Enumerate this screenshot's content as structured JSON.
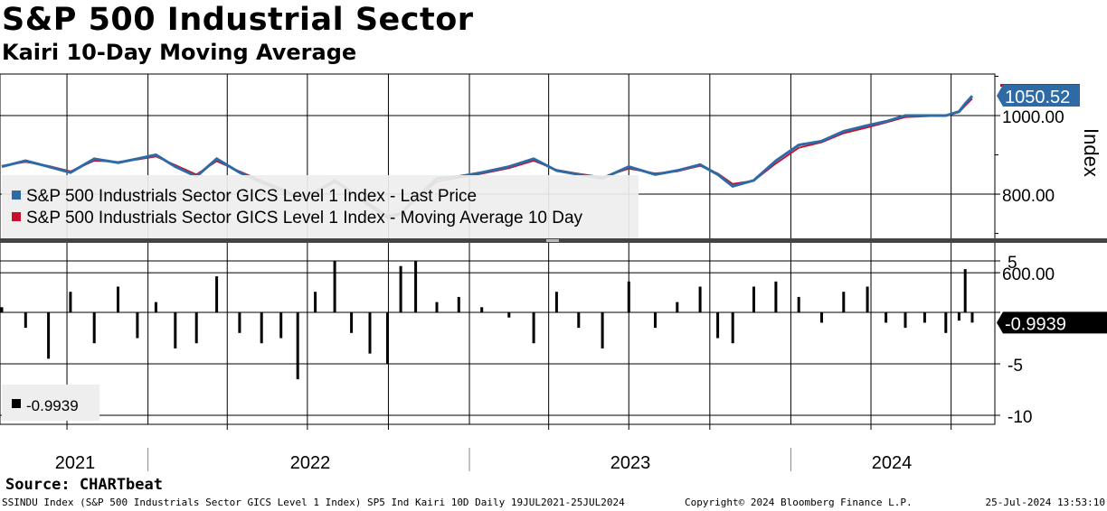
{
  "title": "S&P 500 Industrial Sector",
  "subtitle": "Kairi 10-Day Moving Average",
  "source": "Source: CHARTbeat",
  "footer": {
    "left": "SSINDU Index (S&P 500 Industrials Sector GICS Level 1 Index) SP5 Ind Kairi 10D  Daily 19JUL2021-25JUL2024",
    "center": "Copyright© 2024 Bloomberg Finance L.P.",
    "right": "25-Jul-2024 13:53:10"
  },
  "colors": {
    "price": "#2e6aa6",
    "ma": "#c8102e",
    "kairi": "#000000",
    "last_tag": "#2e6aa6",
    "kairi_tag": "#000000"
  },
  "chart_data": [
    {
      "type": "line",
      "ylabel": "Index",
      "ylim": [
        580,
        1110
      ],
      "yticks": [
        600,
        800,
        1000
      ],
      "ytick_labels": [
        "600.00",
        "800.00",
        "1000.00"
      ],
      "last_value_label": "1050.52",
      "legend": [
        "S&P 500 Industrials Sector GICS Level 1 Index - Last Price",
        "S&P 500 Industrials Sector GICS Level 1 Index - Moving Average 10 Day"
      ],
      "legend_position": "bottom-left",
      "x": [
        "2021-07-19",
        "2021-08-15",
        "2021-09-10",
        "2021-10-05",
        "2021-11-01",
        "2021-11-28",
        "2021-12-20",
        "2022-01-10",
        "2022-02-01",
        "2022-02-25",
        "2022-03-20",
        "2022-04-15",
        "2022-05-10",
        "2022-06-01",
        "2022-06-20",
        "2022-07-10",
        "2022-08-01",
        "2022-08-20",
        "2022-09-10",
        "2022-09-30",
        "2022-10-15",
        "2022-11-01",
        "2022-11-25",
        "2022-12-20",
        "2023-01-15",
        "2023-02-15",
        "2023-03-15",
        "2023-04-10",
        "2023-05-05",
        "2023-06-01",
        "2023-07-01",
        "2023-07-31",
        "2023-08-25",
        "2023-09-20",
        "2023-10-10",
        "2023-10-27",
        "2023-11-20",
        "2023-12-15",
        "2024-01-10",
        "2024-02-05",
        "2024-03-01",
        "2024-03-28",
        "2024-04-18",
        "2024-05-10",
        "2024-06-01",
        "2024-06-25",
        "2024-07-10",
        "2024-07-17",
        "2024-07-25"
      ],
      "series": [
        {
          "name": "S&P 500 Industrials Sector GICS Level 1 Index - Last Price",
          "values": [
            870,
            885,
            870,
            855,
            890,
            880,
            890,
            900,
            870,
            845,
            890,
            855,
            830,
            810,
            790,
            805,
            835,
            805,
            770,
            740,
            750,
            790,
            840,
            845,
            855,
            870,
            890,
            860,
            850,
            840,
            870,
            850,
            860,
            875,
            850,
            820,
            835,
            885,
            925,
            935,
            960,
            975,
            985,
            1000,
            1000,
            1000,
            1010,
            1030,
            1050
          ]
        },
        {
          "name": "S&P 500 Industrials Sector GICS Level 1 Index - Moving Average 10 Day",
          "values": [
            872,
            882,
            872,
            858,
            885,
            882,
            888,
            896,
            874,
            850,
            884,
            858,
            834,
            814,
            795,
            804,
            830,
            808,
            775,
            745,
            752,
            785,
            832,
            842,
            852,
            866,
            885,
            862,
            852,
            843,
            865,
            853,
            858,
            872,
            853,
            826,
            834,
            878,
            918,
            932,
            955,
            970,
            982,
            996,
            998,
            1000,
            1008,
            1025,
            1043
          ]
        }
      ]
    },
    {
      "type": "bar",
      "ylim": [
        -11,
        6
      ],
      "yticks": [
        5,
        0,
        -5,
        -10
      ],
      "ytick_labels": [
        "5",
        "0",
        "-5",
        "-10"
      ],
      "last_value_label": "-0.9939",
      "legend": [
        "-0.9939"
      ],
      "legend_position": "bottom-left",
      "x": [
        "2021-07-19",
        "2021-08-15",
        "2021-09-10",
        "2021-10-05",
        "2021-11-01",
        "2021-11-28",
        "2021-12-20",
        "2022-01-10",
        "2022-02-01",
        "2022-02-25",
        "2022-03-20",
        "2022-04-15",
        "2022-05-10",
        "2022-06-01",
        "2022-06-20",
        "2022-07-10",
        "2022-08-01",
        "2022-08-20",
        "2022-09-10",
        "2022-09-30",
        "2022-10-15",
        "2022-11-01",
        "2022-11-25",
        "2022-12-20",
        "2023-01-15",
        "2023-02-15",
        "2023-03-15",
        "2023-04-10",
        "2023-05-05",
        "2023-06-01",
        "2023-07-01",
        "2023-07-31",
        "2023-08-25",
        "2023-09-20",
        "2023-10-10",
        "2023-10-27",
        "2023-11-20",
        "2023-12-15",
        "2024-01-10",
        "2024-02-05",
        "2024-03-01",
        "2024-03-28",
        "2024-04-18",
        "2024-05-10",
        "2024-06-01",
        "2024-06-25",
        "2024-07-10",
        "2024-07-17",
        "2024-07-25"
      ],
      "values": [
        0.5,
        -1.5,
        -4.5,
        2.0,
        -3.0,
        2.5,
        -2.5,
        1.0,
        -3.5,
        -3.0,
        3.5,
        -2.0,
        -3.0,
        -2.5,
        -6.5,
        2.0,
        5.0,
        -2.0,
        -4.0,
        -5.0,
        4.5,
        5.0,
        1.0,
        1.5,
        0.5,
        -0.5,
        -3.0,
        2.0,
        -1.5,
        -3.5,
        3.0,
        -1.5,
        1.0,
        2.5,
        -2.5,
        -3.0,
        2.5,
        3.0,
        1.5,
        -1.0,
        2.0,
        2.5,
        -1.0,
        -1.5,
        -1.0,
        -2.0,
        -0.8,
        4.2,
        -0.99
      ]
    }
  ],
  "x_axis": {
    "year_labels": [
      "2021",
      "2022",
      "2023",
      "2024"
    ]
  }
}
